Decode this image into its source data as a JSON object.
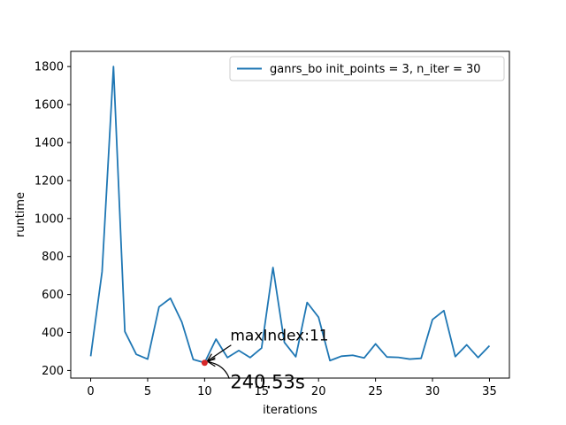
{
  "chart_data": {
    "type": "line",
    "title": "",
    "xlabel": "iterations",
    "ylabel": "runtime",
    "xlim": [
      -1.75,
      36.75
    ],
    "ylim": [
      160,
      1880
    ],
    "xticks": [
      0,
      5,
      10,
      15,
      20,
      25,
      30,
      35
    ],
    "yticks": [
      200,
      400,
      600,
      800,
      1000,
      1200,
      1400,
      1600,
      1800
    ],
    "grid": false,
    "legend_position": "top-right",
    "series": [
      {
        "name": "ganrs_bo  init_points = 3, n_iter = 30",
        "color": "#1f77b4",
        "x": [
          0,
          1,
          2,
          3,
          4,
          5,
          6,
          7,
          8,
          9,
          10,
          11,
          12,
          13,
          14,
          15,
          16,
          17,
          18,
          19,
          20,
          21,
          22,
          23,
          24,
          25,
          26,
          27,
          28,
          29,
          30,
          31,
          32,
          33,
          34,
          35
        ],
        "values": [
          275,
          720,
          1800,
          405,
          285,
          260,
          535,
          580,
          455,
          258,
          241,
          365,
          268,
          305,
          268,
          318,
          742,
          348,
          272,
          558,
          480,
          252,
          275,
          280,
          266,
          340,
          271,
          269,
          260,
          264,
          468,
          515,
          273,
          335,
          268,
          330
        ]
      }
    ],
    "highlight_point": {
      "x": 10,
      "y": 240.53,
      "color": "#d62728"
    },
    "annotations": [
      {
        "text": "maxIndex:11",
        "x": 10,
        "y": 240.53
      },
      {
        "text": "240.53s",
        "x": 10,
        "y": 240.53
      }
    ]
  }
}
